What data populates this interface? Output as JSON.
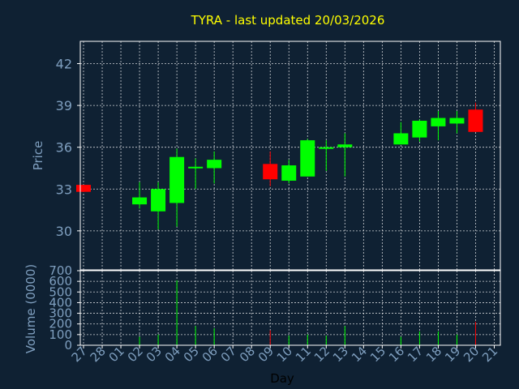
{
  "chart_data": {
    "type": "candlestick",
    "title": "TYRA - last updated 20/03/2026",
    "xlabel": "Day",
    "ylabel": "Price",
    "volume_label": "Volume (0000)",
    "grid": true,
    "colors": {
      "background": "#0f2133",
      "axis": "#ffffff",
      "grid": "#ffffff",
      "text_axis": "#7f9fbf",
      "title": "#ffff00",
      "up": "#00ff00",
      "down": "#ff0000"
    },
    "price_ticks": [
      30,
      33,
      36,
      39,
      42
    ],
    "price_range": [
      27.2,
      43.6
    ],
    "volume_ticks": [
      0,
      100,
      200,
      300,
      400,
      500,
      600,
      700
    ],
    "volume_range": [
      0,
      700
    ],
    "x_labels": [
      "27",
      "28",
      "01",
      "02",
      "03",
      "04",
      "05",
      "06",
      "07",
      "08",
      "09",
      "10",
      "11",
      "12",
      "13",
      "14",
      "15",
      "16",
      "17",
      "18",
      "19",
      "20",
      "21"
    ],
    "candles": [
      {
        "day": "27",
        "open": 33.3,
        "close": 32.8,
        "high": 33.3,
        "low": 32.8,
        "volume": 0
      },
      {
        "day": "02",
        "open": 31.9,
        "close": 32.4,
        "high": 33.5,
        "low": 31.6,
        "volume": 80
      },
      {
        "day": "03",
        "open": 31.4,
        "close": 33.0,
        "high": 33.5,
        "low": 30.1,
        "volume": 100
      },
      {
        "day": "04",
        "open": 32.0,
        "close": 35.3,
        "high": 35.9,
        "low": 30.3,
        "volume": 610
      },
      {
        "day": "05",
        "open": 34.6,
        "close": 34.6,
        "high": 35.2,
        "low": 33.0,
        "volume": 180
      },
      {
        "day": "06",
        "open": 34.5,
        "close": 35.1,
        "high": 35.7,
        "low": 33.4,
        "volume": 160
      },
      {
        "day": "09",
        "open": 34.8,
        "close": 33.7,
        "high": 35.7,
        "low": 33.2,
        "volume": 140
      },
      {
        "day": "10",
        "open": 33.6,
        "close": 34.7,
        "high": 35.1,
        "low": 33.4,
        "volume": 90
      },
      {
        "day": "11",
        "open": 33.9,
        "close": 36.5,
        "high": 36.6,
        "low": 33.9,
        "volume": 100
      },
      {
        "day": "12",
        "open": 36.0,
        "close": 36.0,
        "high": 36.5,
        "low": 34.3,
        "volume": 90
      },
      {
        "day": "13",
        "open": 36.0,
        "close": 36.2,
        "high": 37.0,
        "low": 33.9,
        "volume": 180
      },
      {
        "day": "16",
        "open": 36.2,
        "close": 37.0,
        "high": 37.8,
        "low": 36.2,
        "volume": 80
      },
      {
        "day": "17",
        "open": 36.7,
        "close": 37.9,
        "high": 38.0,
        "low": 36.4,
        "volume": 130
      },
      {
        "day": "18",
        "open": 37.5,
        "close": 38.1,
        "high": 38.6,
        "low": 36.5,
        "volume": 130
      },
      {
        "day": "19",
        "open": 37.7,
        "close": 38.1,
        "high": 38.6,
        "low": 37.0,
        "volume": 100
      },
      {
        "day": "20",
        "open": 38.7,
        "close": 37.1,
        "high": 39.2,
        "low": 37.1,
        "volume": 220
      }
    ]
  }
}
